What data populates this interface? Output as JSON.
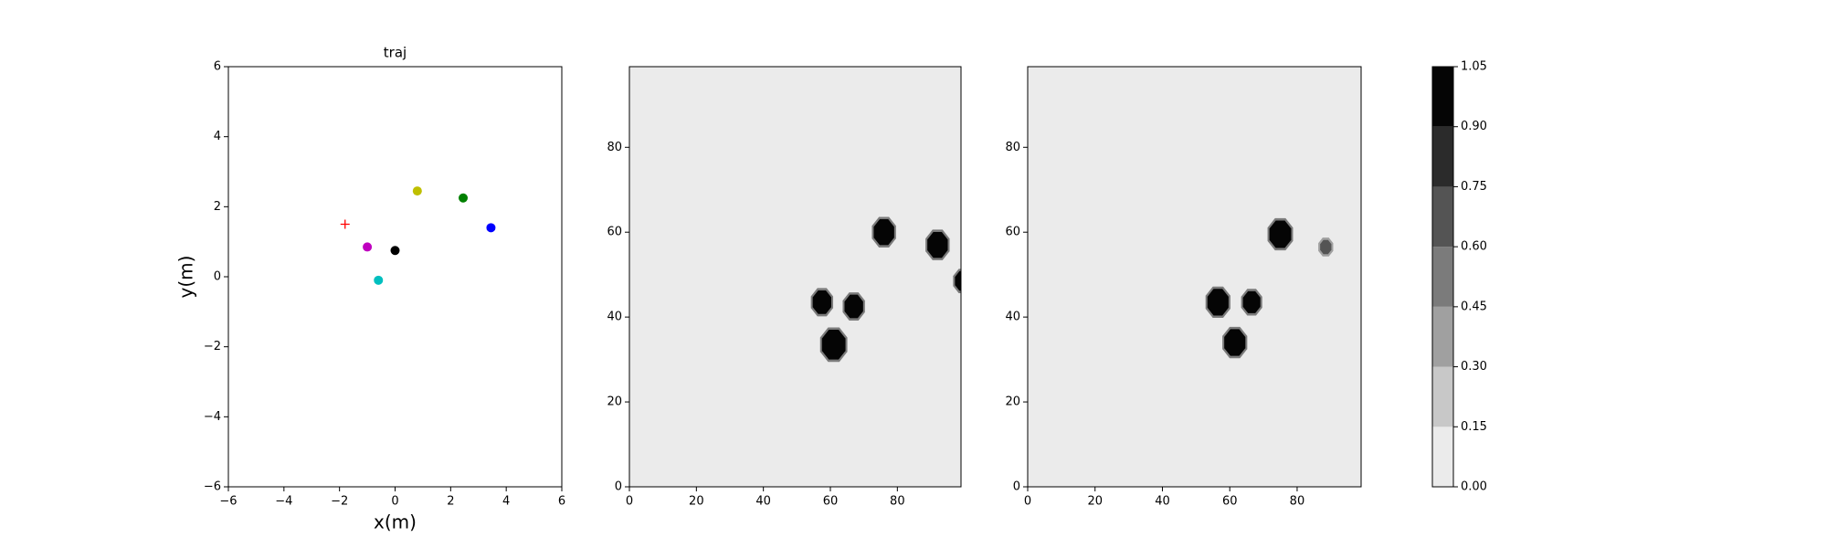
{
  "chart_data": [
    {
      "type": "scatter",
      "title": "traj",
      "xlabel": "x(m)",
      "ylabel": "y(m)",
      "xlim": [
        -6,
        6
      ],
      "ylim": [
        -6,
        6
      ],
      "xticks": [
        {
          "value": -6,
          "label": "−6"
        },
        {
          "value": -4,
          "label": "−4"
        },
        {
          "value": -2,
          "label": "−2"
        },
        0,
        2,
        4,
        6
      ],
      "yticks": [
        {
          "value": -6,
          "label": "−6"
        },
        {
          "value": -4,
          "label": "−4"
        },
        {
          "value": -2,
          "label": "−2"
        },
        0,
        2,
        4,
        6
      ],
      "series": [
        {
          "color": "#ff0000",
          "marker": "+",
          "x": [
            -1.8
          ],
          "y": [
            1.5
          ]
        },
        {
          "color": "#bf00bf",
          "marker": "o",
          "x": [
            -1.0
          ],
          "y": [
            0.85
          ]
        },
        {
          "color": "#00bfbf",
          "marker": "o",
          "x": [
            -0.6
          ],
          "y": [
            -0.1
          ]
        },
        {
          "color": "#000000",
          "marker": "o",
          "x": [
            0.0
          ],
          "y": [
            0.75
          ]
        },
        {
          "color": "#bfbf00",
          "marker": "o",
          "x": [
            0.8
          ],
          "y": [
            2.45
          ]
        },
        {
          "color": "#008000",
          "marker": "o",
          "x": [
            2.45
          ],
          "y": [
            2.25
          ]
        },
        {
          "color": "#0000ff",
          "marker": "o",
          "x": [
            3.45
          ],
          "y": [
            1.4
          ]
        }
      ]
    },
    {
      "type": "heatmap",
      "xlim": [
        0,
        99
      ],
      "ylim": [
        0,
        99
      ],
      "xticks": [
        0,
        20,
        40,
        60,
        80
      ],
      "yticks": [
        0,
        20,
        40,
        60,
        80
      ],
      "background": 0.05,
      "blobs": [
        {
          "x": 57.5,
          "y": 43.5,
          "r": 3,
          "value": 1
        },
        {
          "x": 67,
          "y": 42.5,
          "r": 3,
          "value": 1
        },
        {
          "x": 61,
          "y": 33.5,
          "r": 3.8,
          "value": 1
        },
        {
          "x": 76,
          "y": 60,
          "r": 3.3,
          "value": 1
        },
        {
          "x": 92,
          "y": 57,
          "r": 3.3,
          "value": 1
        },
        {
          "x": 99.5,
          "y": 48.5,
          "r": 2.5,
          "value": 1
        }
      ]
    },
    {
      "type": "heatmap",
      "xlim": [
        0,
        99
      ],
      "ylim": [
        0,
        99
      ],
      "xticks": [
        0,
        20,
        40,
        60,
        80
      ],
      "yticks": [
        0,
        20,
        40,
        60,
        80
      ],
      "background": 0.05,
      "blobs": [
        {
          "x": 56.5,
          "y": 43.5,
          "r": 3.4,
          "value": 1
        },
        {
          "x": 66.5,
          "y": 43.5,
          "r": 2.8,
          "value": 0.95
        },
        {
          "x": 61.5,
          "y": 34,
          "r": 3.4,
          "value": 1
        },
        {
          "x": 75,
          "y": 59.5,
          "r": 3.5,
          "value": 1
        },
        {
          "x": 88.5,
          "y": 56.5,
          "r": 1.8,
          "value": 0.7
        }
      ]
    },
    {
      "type": "colorbar",
      "levels": [
        {
          "value": 0,
          "label": "0.00"
        },
        {
          "value": 0.15,
          "label": "0.15"
        },
        {
          "value": 0.3,
          "label": "0.30"
        },
        {
          "value": 0.45,
          "label": "0.45"
        },
        {
          "value": 0.6,
          "label": "0.60"
        },
        {
          "value": 0.75,
          "label": "0.75"
        },
        {
          "value": 0.9,
          "label": "0.90"
        },
        {
          "value": 1.05,
          "label": "1.05"
        }
      ],
      "colors": [
        "#ebebeb",
        "#c8c8c8",
        "#a0a0a0",
        "#7b7b7b",
        "#545454",
        "#2b2b2b",
        "#050505"
      ]
    }
  ]
}
